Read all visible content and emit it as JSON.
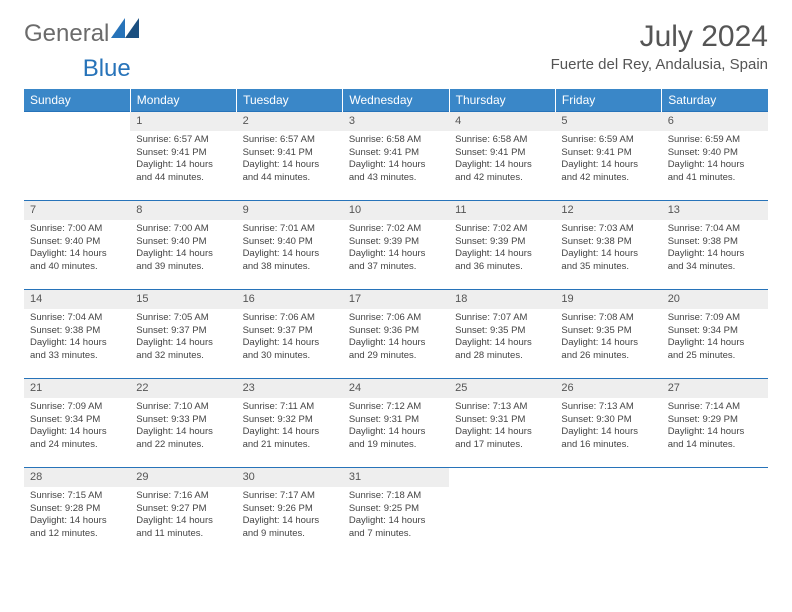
{
  "logo": {
    "text1": "General",
    "text2": "Blue"
  },
  "title": "July 2024",
  "location": "Fuerte del Rey, Andalusia, Spain",
  "colors": {
    "header_bg": "#3a87c8",
    "header_text": "#ffffff",
    "daynum_bg": "#eeeeee",
    "rule": "#2773b9",
    "body_text": "#444444",
    "title_text": "#555555",
    "logo_grey": "#6b6b6b",
    "logo_blue": "#2773b9"
  },
  "weekdays": [
    "Sunday",
    "Monday",
    "Tuesday",
    "Wednesday",
    "Thursday",
    "Friday",
    "Saturday"
  ],
  "layout": {
    "first_weekday_index": 1,
    "days_in_month": 31
  },
  "days": {
    "1": {
      "sunrise": "6:57 AM",
      "sunset": "9:41 PM",
      "daylight": "14 hours and 44 minutes."
    },
    "2": {
      "sunrise": "6:57 AM",
      "sunset": "9:41 PM",
      "daylight": "14 hours and 44 minutes."
    },
    "3": {
      "sunrise": "6:58 AM",
      "sunset": "9:41 PM",
      "daylight": "14 hours and 43 minutes."
    },
    "4": {
      "sunrise": "6:58 AM",
      "sunset": "9:41 PM",
      "daylight": "14 hours and 42 minutes."
    },
    "5": {
      "sunrise": "6:59 AM",
      "sunset": "9:41 PM",
      "daylight": "14 hours and 42 minutes."
    },
    "6": {
      "sunrise": "6:59 AM",
      "sunset": "9:40 PM",
      "daylight": "14 hours and 41 minutes."
    },
    "7": {
      "sunrise": "7:00 AM",
      "sunset": "9:40 PM",
      "daylight": "14 hours and 40 minutes."
    },
    "8": {
      "sunrise": "7:00 AM",
      "sunset": "9:40 PM",
      "daylight": "14 hours and 39 minutes."
    },
    "9": {
      "sunrise": "7:01 AM",
      "sunset": "9:40 PM",
      "daylight": "14 hours and 38 minutes."
    },
    "10": {
      "sunrise": "7:02 AM",
      "sunset": "9:39 PM",
      "daylight": "14 hours and 37 minutes."
    },
    "11": {
      "sunrise": "7:02 AM",
      "sunset": "9:39 PM",
      "daylight": "14 hours and 36 minutes."
    },
    "12": {
      "sunrise": "7:03 AM",
      "sunset": "9:38 PM",
      "daylight": "14 hours and 35 minutes."
    },
    "13": {
      "sunrise": "7:04 AM",
      "sunset": "9:38 PM",
      "daylight": "14 hours and 34 minutes."
    },
    "14": {
      "sunrise": "7:04 AM",
      "sunset": "9:38 PM",
      "daylight": "14 hours and 33 minutes."
    },
    "15": {
      "sunrise": "7:05 AM",
      "sunset": "9:37 PM",
      "daylight": "14 hours and 32 minutes."
    },
    "16": {
      "sunrise": "7:06 AM",
      "sunset": "9:37 PM",
      "daylight": "14 hours and 30 minutes."
    },
    "17": {
      "sunrise": "7:06 AM",
      "sunset": "9:36 PM",
      "daylight": "14 hours and 29 minutes."
    },
    "18": {
      "sunrise": "7:07 AM",
      "sunset": "9:35 PM",
      "daylight": "14 hours and 28 minutes."
    },
    "19": {
      "sunrise": "7:08 AM",
      "sunset": "9:35 PM",
      "daylight": "14 hours and 26 minutes."
    },
    "20": {
      "sunrise": "7:09 AM",
      "sunset": "9:34 PM",
      "daylight": "14 hours and 25 minutes."
    },
    "21": {
      "sunrise": "7:09 AM",
      "sunset": "9:34 PM",
      "daylight": "14 hours and 24 minutes."
    },
    "22": {
      "sunrise": "7:10 AM",
      "sunset": "9:33 PM",
      "daylight": "14 hours and 22 minutes."
    },
    "23": {
      "sunrise": "7:11 AM",
      "sunset": "9:32 PM",
      "daylight": "14 hours and 21 minutes."
    },
    "24": {
      "sunrise": "7:12 AM",
      "sunset": "9:31 PM",
      "daylight": "14 hours and 19 minutes."
    },
    "25": {
      "sunrise": "7:13 AM",
      "sunset": "9:31 PM",
      "daylight": "14 hours and 17 minutes."
    },
    "26": {
      "sunrise": "7:13 AM",
      "sunset": "9:30 PM",
      "daylight": "14 hours and 16 minutes."
    },
    "27": {
      "sunrise": "7:14 AM",
      "sunset": "9:29 PM",
      "daylight": "14 hours and 14 minutes."
    },
    "28": {
      "sunrise": "7:15 AM",
      "sunset": "9:28 PM",
      "daylight": "14 hours and 12 minutes."
    },
    "29": {
      "sunrise": "7:16 AM",
      "sunset": "9:27 PM",
      "daylight": "14 hours and 11 minutes."
    },
    "30": {
      "sunrise": "7:17 AM",
      "sunset": "9:26 PM",
      "daylight": "14 hours and 9 minutes."
    },
    "31": {
      "sunrise": "7:18 AM",
      "sunset": "9:25 PM",
      "daylight": "14 hours and 7 minutes."
    }
  },
  "labels": {
    "sunrise": "Sunrise:",
    "sunset": "Sunset:",
    "daylight": "Daylight:"
  }
}
